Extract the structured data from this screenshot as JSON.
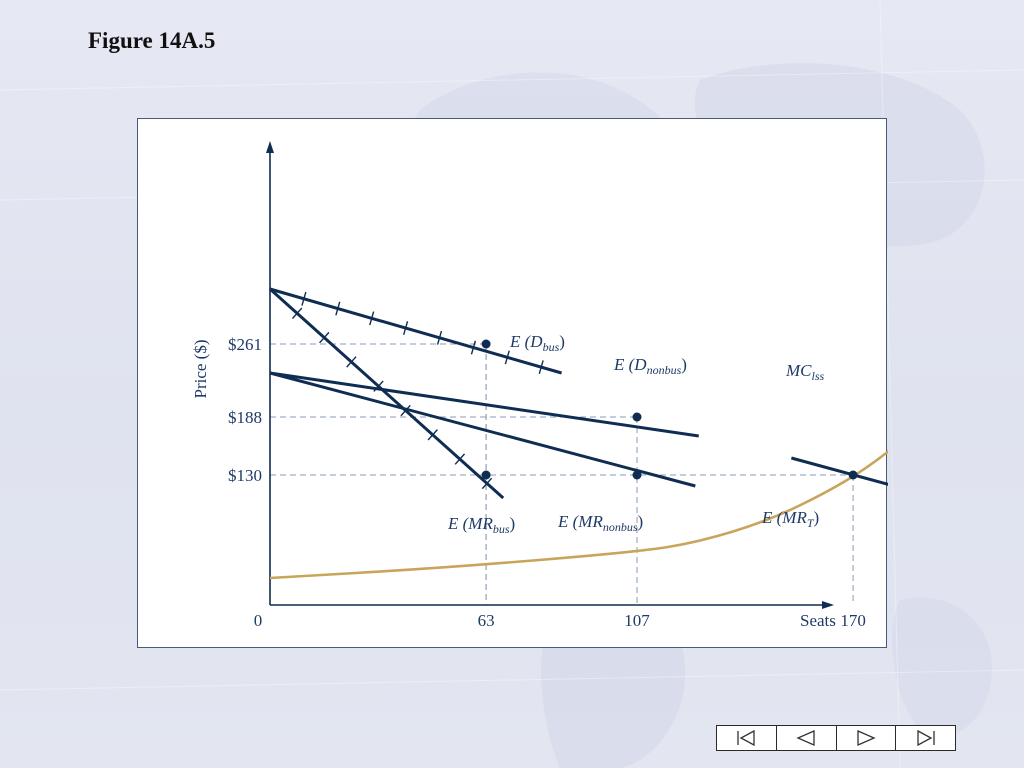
{
  "page": {
    "title": "Figure 14A.5"
  },
  "colors": {
    "curve": "#0f2d52",
    "mc": "#c9a45c",
    "guide": "#8a9bb7",
    "text": "#1f3a66"
  },
  "navigation": {
    "buttons": [
      {
        "name": "first-slide-icon"
      },
      {
        "name": "previous-slide-icon"
      },
      {
        "name": "next-slide-icon"
      },
      {
        "name": "last-slide-icon"
      }
    ]
  },
  "chart_data": {
    "type": "line",
    "title": "",
    "xlabel": "Seats",
    "ylabel": "Price ($)",
    "origin_label": "0",
    "xlim": [
      0,
      200
    ],
    "ylim": [
      0,
      338
    ],
    "x_ticks": [
      {
        "value": 63,
        "label": "63"
      },
      {
        "value": 107,
        "label": "107"
      },
      {
        "value": 170,
        "label": "170"
      }
    ],
    "y_ticks": [
      {
        "value": 261,
        "label": "$261"
      },
      {
        "value": 188,
        "label": "$188"
      },
      {
        "value": 130,
        "label": "$130"
      }
    ],
    "series": [
      {
        "name": "E (D_bus)",
        "label_main": "E (D",
        "label_sub": "bus",
        "label_end": ")",
        "points": [
          [
            0,
            316
          ],
          [
            85,
            232
          ]
        ],
        "crossed": true
      },
      {
        "name": "E (MR_bus)",
        "label_main": "E (MR",
        "label_sub": "bus",
        "label_end": ")",
        "points": [
          [
            0,
            316
          ],
          [
            68,
            107
          ]
        ],
        "crossed": true
      },
      {
        "name": "E (D_nonbus)",
        "label_main": "E (D",
        "label_sub": "nonbus",
        "label_end": ")",
        "points": [
          [
            0,
            232
          ],
          [
            125,
            169
          ]
        ],
        "crossed": false
      },
      {
        "name": "E (MR_nonbus)",
        "label_main": "E (MR",
        "label_sub": "nonbus",
        "label_end": ")",
        "points": [
          [
            0,
            232
          ],
          [
            124,
            119
          ]
        ],
        "crossed": false
      },
      {
        "name": "E (MR_T)",
        "label_main": "E (MR",
        "label_sub": "T",
        "label_end": ")",
        "points": [
          [
            152,
            147
          ],
          [
            197,
            105
          ]
        ],
        "crossed": false
      },
      {
        "name": "MC_lss",
        "label_main": "MC",
        "label_sub": "lss",
        "label_end": "",
        "points": [
          [
            0,
            27
          ],
          [
            50,
            37
          ],
          [
            107,
            53
          ],
          [
            125,
            63
          ],
          [
            145,
            84
          ],
          [
            162,
            112
          ],
          [
            175,
            139
          ],
          [
            188,
            175
          ],
          [
            200,
            210
          ]
        ],
        "crossed": false,
        "smooth": true
      }
    ],
    "highlighted_points": [
      {
        "x": 63,
        "y": 261
      },
      {
        "x": 107,
        "y": 188
      },
      {
        "x": 63,
        "y": 130
      },
      {
        "x": 107,
        "y": 130
      },
      {
        "x": 170,
        "y": 130
      }
    ],
    "guide_lines": [
      {
        "x": 63,
        "y": 261
      },
      {
        "x": 107,
        "y": 188
      },
      {
        "x": 170,
        "y": 130
      }
    ]
  }
}
